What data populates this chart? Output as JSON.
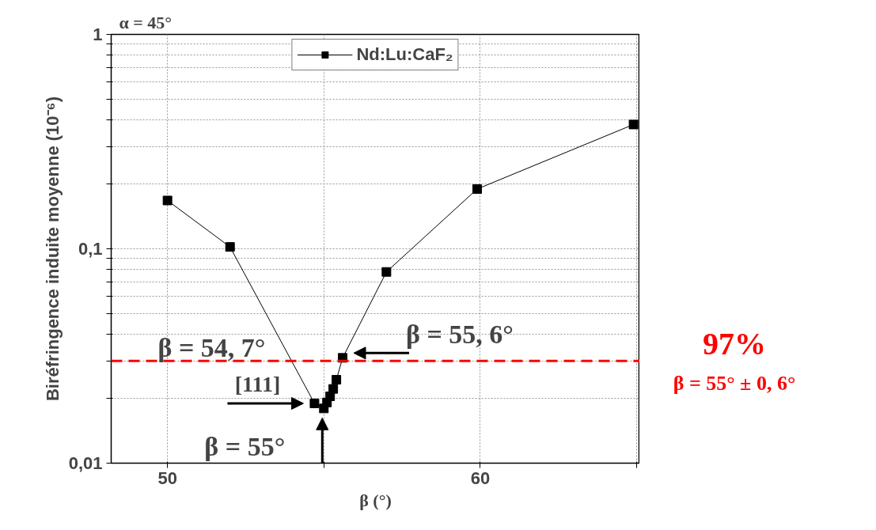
{
  "chart_data": {
    "type": "line",
    "title": "α = 45°",
    "xlabel": "β (°)",
    "ylabel": "Biréfringence induite moyenne (10⁻⁶)",
    "x": [
      50,
      52,
      54.7,
      55.0,
      55.1,
      55.2,
      55.3,
      55.4,
      55.6,
      57,
      59.9,
      64.9
    ],
    "series": [
      {
        "name": "Nd:Lu:CaF₂",
        "color": "#000000",
        "values": [
          0.168,
          0.102,
          0.019,
          0.018,
          0.0192,
          0.0205,
          0.0222,
          0.0245,
          0.031,
          0.078,
          0.19,
          0.38
        ]
      }
    ],
    "marker": "square",
    "line_style": "solid",
    "log": "y",
    "grid": true,
    "legend": "top",
    "xlim": [
      48.2,
      65.1
    ],
    "xticks": [
      50,
      {
        "value": 55,
        "label": null
      },
      60,
      {
        "value": 65,
        "label": null
      }
    ],
    "ylim": [
      0.01,
      1
    ],
    "yticks": [
      {
        "value": 0.01,
        "label": "0,01"
      },
      {
        "value": 0.02,
        "label": null
      },
      {
        "value": 0.03,
        "label": null
      },
      {
        "value": 0.04,
        "label": null
      },
      {
        "value": 0.05,
        "label": null
      },
      {
        "value": 0.06,
        "label": null
      },
      {
        "value": 0.07,
        "label": null
      },
      {
        "value": 0.08,
        "label": null
      },
      {
        "value": 0.09,
        "label": null
      },
      {
        "value": 0.1,
        "label": "0,1"
      },
      {
        "value": 0.2,
        "label": null
      },
      {
        "value": 0.3,
        "label": null
      },
      {
        "value": 0.4,
        "label": null
      },
      {
        "value": 0.5,
        "label": null
      },
      {
        "value": 0.6,
        "label": null
      },
      {
        "value": 0.7,
        "label": null
      },
      {
        "value": 0.8,
        "label": null
      },
      {
        "value": 0.9,
        "label": null
      },
      1
    ],
    "ref_lines": [
      {
        "axis": "y",
        "value": 0.03,
        "label": "97%\nβ = 55° ± 0, 6°",
        "color": "#ff0000",
        "line_style": "dashed"
      }
    ],
    "annotations": [
      "β = 54, 7°",
      {
        "text": "[111]",
        "x": 54.7,
        "y": 0.019
      },
      {
        "text": "β = 55°",
        "x": 55.0,
        "y": 0.018
      },
      {
        "text": "β = 55, 6°",
        "x": 55.6,
        "y": 0.031
      }
    ]
  }
}
